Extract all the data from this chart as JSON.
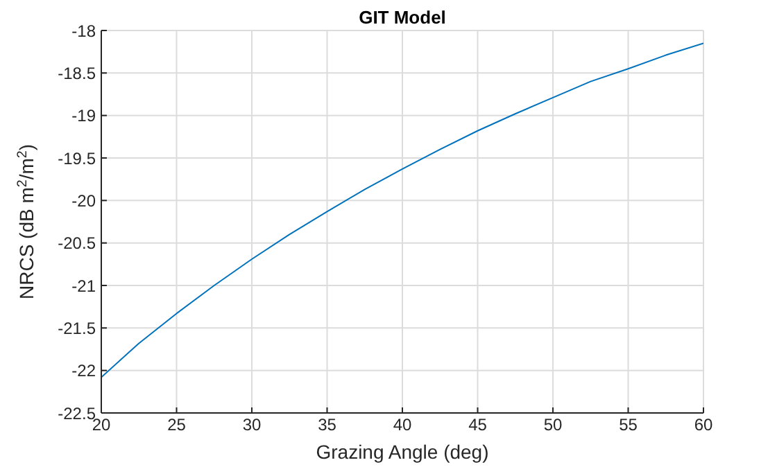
{
  "chart_data": {
    "type": "line",
    "title": "GIT Model",
    "xlabel": "Grazing Angle (deg)",
    "ylabel": "NRCS (dB m$^{2}$/m$^{2}$)",
    "x": [
      20,
      22.5,
      25,
      27.5,
      30,
      32.5,
      35,
      37.5,
      40,
      42.5,
      45,
      47.5,
      50,
      52.5,
      55,
      57.5,
      60
    ],
    "series": [
      {
        "color": "#0072bd",
        "values": [
          -22.08,
          -21.68,
          -21.33,
          -21.0,
          -20.69,
          -20.4,
          -20.13,
          -19.87,
          -19.63,
          -19.4,
          -19.18,
          -18.98,
          -18.79,
          -18.6,
          -18.45,
          -18.29,
          -18.15
        ]
      }
    ],
    "xlim": [
      20,
      60
    ],
    "xticks": [
      20,
      25,
      30,
      35,
      40,
      45,
      50,
      55,
      60
    ],
    "ylim": [
      -22.5,
      -18
    ],
    "yticks": [
      -22.5,
      -22,
      -21.5,
      -21,
      -20.5,
      -20,
      -19.5,
      -19,
      -18.5,
      -18
    ],
    "grid": true,
    "marker": "none",
    "line_style": "solid"
  }
}
